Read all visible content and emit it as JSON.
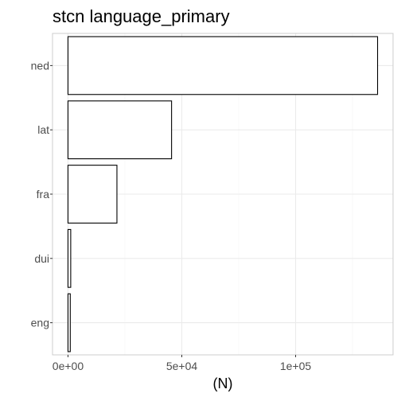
{
  "chart_data": {
    "type": "bar",
    "orientation": "horizontal",
    "title": "stcn language_primary",
    "xlabel": "(N)",
    "ylabel": "",
    "categories": [
      "ned",
      "lat",
      "fra",
      "dui",
      "eng"
    ],
    "values": [
      136000,
      45500,
      21500,
      1200,
      1000
    ],
    "xlim": [
      -6800,
      142800
    ],
    "x_ticks": [
      {
        "value": 0,
        "label": "0e+00"
      },
      {
        "value": 50000,
        "label": "5e+04"
      },
      {
        "value": 100000,
        "label": "1e+05"
      }
    ],
    "grid": true,
    "legend": "none",
    "colors": {
      "bar_fill": "#ffffff",
      "bar_stroke": "#000000",
      "grid_major": "#ebebeb",
      "grid_minor": "#f5f5f5",
      "panel_border": "#cccccc",
      "tick_text": "#4d4d4d"
    }
  }
}
